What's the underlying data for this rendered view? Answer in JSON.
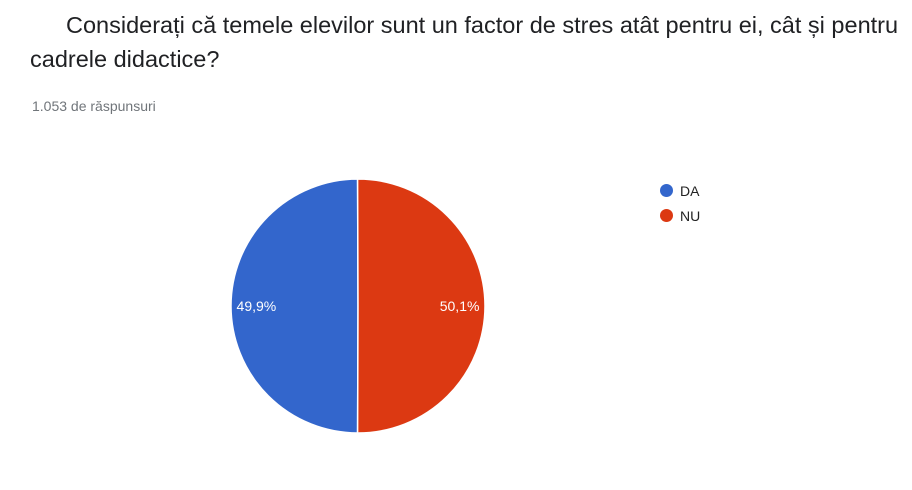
{
  "title": "Considerați că temele elevilor sunt un factor de stres atât pentru ei, cât și pentru cadrele didactice?",
  "response_count": "1.053 de răspunsuri",
  "chart_data": {
    "type": "pie",
    "title": "Considerați că temele elevilor sunt un factor de stres atât pentru ei, cât și pentru cadrele didactice?",
    "slices": [
      {
        "name": "DA",
        "value": 49.9,
        "label": "49,9%",
        "color": "#3366cc"
      },
      {
        "name": "NU",
        "value": 50.1,
        "label": "50,1%",
        "color": "#dc3912"
      }
    ],
    "legend": "right"
  }
}
